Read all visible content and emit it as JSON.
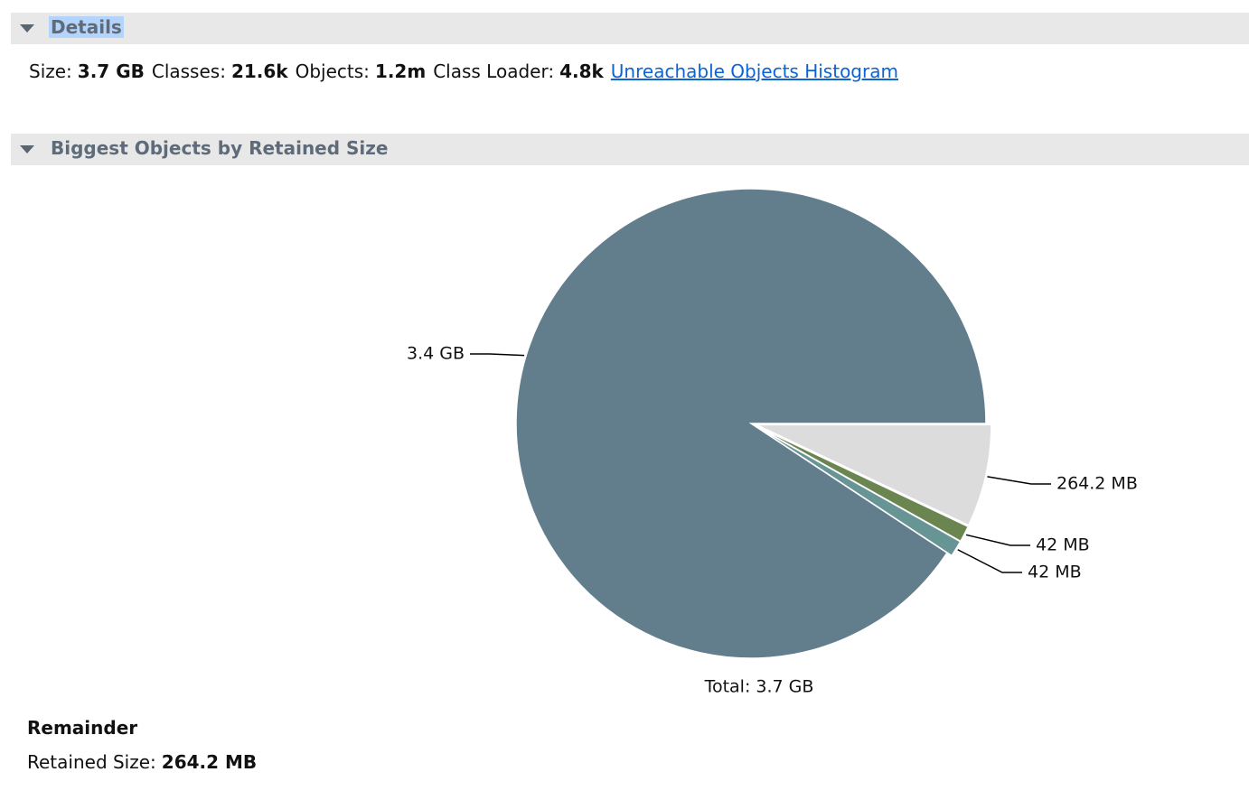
{
  "details": {
    "title": "Details",
    "items": [
      {
        "label": "Size:",
        "value": "3.7 GB"
      },
      {
        "label": "Classes:",
        "value": "21.6k"
      },
      {
        "label": "Objects:",
        "value": "1.2m"
      },
      {
        "label": "Class Loader:",
        "value": "4.8k"
      }
    ],
    "link": "Unreachable Objects Histogram"
  },
  "biggest_objects": {
    "title": "Biggest Objects by Retained Size",
    "chart_data": {
      "type": "pie",
      "values": [
        0.2642,
        0.042,
        0.042,
        3.4
      ],
      "value_labels": [
        "264.2 MB",
        "42 MB",
        "42 MB",
        "3.4 GB"
      ],
      "colors": [
        "#dcdcdc",
        "#6b8550",
        "#679494",
        "#627d8c"
      ],
      "total_label": "Total: 3.7 GB"
    }
  },
  "selection": {
    "title": "Remainder",
    "label": "Retained Size:",
    "value": "264.2 MB"
  }
}
